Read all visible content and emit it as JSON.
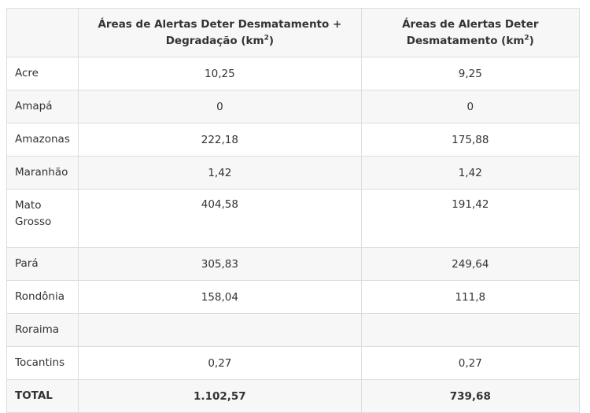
{
  "table": {
    "headers": {
      "state": "",
      "col_a_text": "Áreas de Alertas Deter Desmatamento + Degradação (km",
      "col_a_sup": "2",
      "col_a_close": ")",
      "col_b_text": "Áreas de Alertas Deter Desmatamento (km",
      "col_b_sup": "2",
      "col_b_close": ")"
    },
    "rows": [
      {
        "state": "Acre",
        "a": "10,25",
        "b": "9,25"
      },
      {
        "state": "Amapá",
        "a": "0",
        "b": "0"
      },
      {
        "state": "Amazonas",
        "a": "222,18",
        "b": "175,88"
      },
      {
        "state": "Maranhão",
        "a": "1,42",
        "b": "1,42"
      },
      {
        "state": "Mato Grosso",
        "a": "404,58",
        "b": "191,42"
      },
      {
        "state": "Pará",
        "a": "305,83",
        "b": "249,64"
      },
      {
        "state": "Rondônia",
        "a": "158,04",
        "b": "111,8"
      },
      {
        "state": "Roraima",
        "a": "",
        "b": ""
      },
      {
        "state": "Tocantins",
        "a": "0,27",
        "b": "0,27"
      }
    ],
    "total": {
      "label": "TOTAL",
      "a": "1.102,57",
      "b": "739,68"
    }
  }
}
